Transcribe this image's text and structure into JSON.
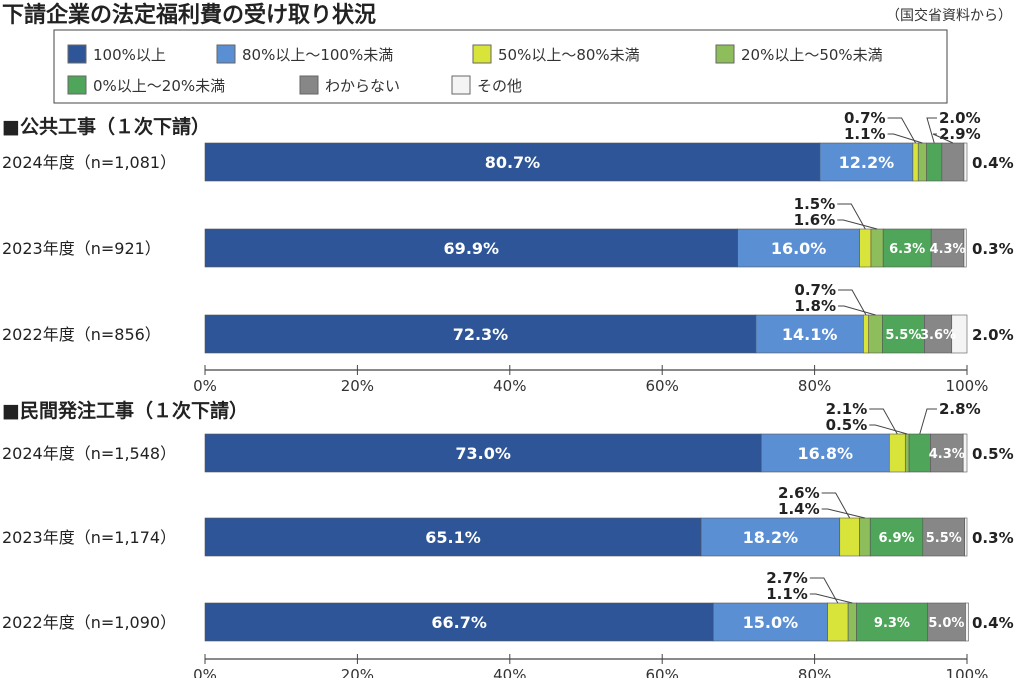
{
  "title": "下請企業の法定福利費の受け取り状況",
  "source": "（国交省資料から）",
  "chart_data": {
    "type": "bar",
    "orientation": "horizontal-stacked-100",
    "x_ticks": [
      "0%",
      "20%",
      "40%",
      "60%",
      "80%",
      "100%"
    ],
    "xlim": [
      0,
      100
    ],
    "legend": [
      {
        "name": "100%以上",
        "color": "#2e5597"
      },
      {
        "name": "80%以上～100%未満",
        "color": "#5b8fd4"
      },
      {
        "name": "50%以上～80%未満",
        "color": "#d9e43a"
      },
      {
        "name": "20%以上～50%未満",
        "color": "#8ebd5c"
      },
      {
        "name": "0%以上～20%未満",
        "color": "#4fa65a"
      },
      {
        "name": "わからない",
        "color": "#878787"
      },
      {
        "name": "その他",
        "color": "#f4f4f4"
      }
    ],
    "groups": [
      {
        "name": "■公共工事（１次下請）",
        "rows": [
          {
            "label": "2024年度（n=1,081）",
            "values": [
              80.7,
              12.2,
              0.7,
              1.1,
              2.0,
              2.9,
              0.4
            ],
            "text": [
              "80.7%",
              "12.2%",
              "0.7%",
              "1.1%",
              "2.0%",
              "2.9%",
              "0.4%"
            ]
          },
          {
            "label": "2023年度（n=921）",
            "values": [
              69.9,
              16.0,
              1.5,
              1.6,
              6.3,
              4.3,
              0.3
            ],
            "text": [
              "69.9%",
              "16.0%",
              "1.5%",
              "1.6%",
              "6.3%",
              "4.3%",
              "0.3%"
            ]
          },
          {
            "label": "2022年度（n=856）",
            "values": [
              72.3,
              14.1,
              0.7,
              1.8,
              5.5,
              3.6,
              2.0
            ],
            "text": [
              "72.3%",
              "14.1%",
              "0.7%",
              "1.8%",
              "5.5%",
              "3.6%",
              "2.0%"
            ]
          }
        ]
      },
      {
        "name": "■民間発注工事（１次下請）",
        "rows": [
          {
            "label": "2024年度（n=1,548）",
            "values": [
              73.0,
              16.8,
              2.1,
              0.5,
              2.8,
              4.3,
              0.5
            ],
            "text": [
              "73.0%",
              "16.8%",
              "2.1%",
              "0.5%",
              "2.8%",
              "4.3%",
              "0.5%"
            ]
          },
          {
            "label": "2023年度（n=1,174）",
            "values": [
              65.1,
              18.2,
              2.6,
              1.4,
              6.9,
              5.5,
              0.3
            ],
            "text": [
              "65.1%",
              "18.2%",
              "2.6%",
              "1.4%",
              "6.9%",
              "5.5%",
              "0.3%"
            ]
          },
          {
            "label": "2022年度（n=1,090）",
            "values": [
              66.7,
              15.0,
              2.7,
              1.1,
              9.3,
              5.0,
              0.4
            ],
            "text": [
              "66.7%",
              "15.0%",
              "2.7%",
              "1.1%",
              "9.3%",
              "5.0%",
              "0.4%"
            ]
          }
        ]
      }
    ]
  }
}
